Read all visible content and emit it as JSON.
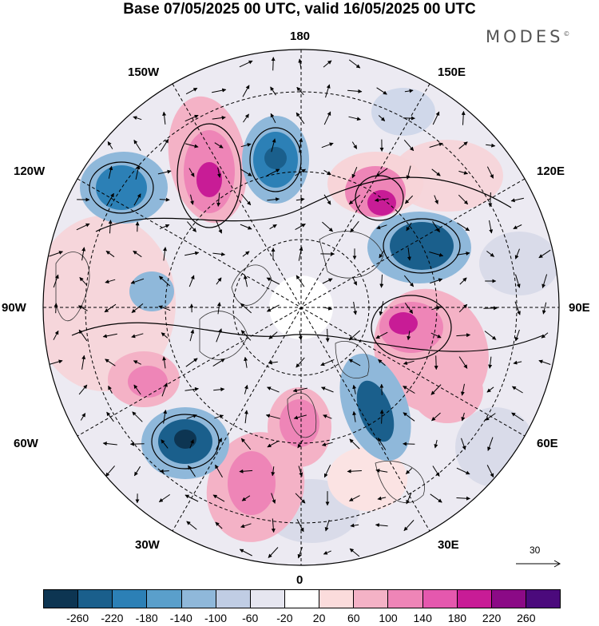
{
  "title": "Base 07/05/2025 00 UTC, valid 16/05/2025 00 UTC",
  "brand": "MODES",
  "brand_mark": "©",
  "longitude_labels": {
    "top": "180",
    "top_left": "150W",
    "top_right": "150E",
    "upper_left": "120W",
    "upper_right": "120E",
    "left": "90W",
    "right": "90E",
    "lower_left": "60W",
    "lower_right": "60E",
    "bottom_left": "30W",
    "bottom_right": "30E",
    "bottom": "0"
  },
  "reference_vector": "30",
  "colorbar": {
    "colors": [
      "#0d3552",
      "#1a5f8c",
      "#2c80b6",
      "#5a9fcb",
      "#8fb8da",
      "#c0cde4",
      "#e6e6f0",
      "#ffffff",
      "#fbdcdc",
      "#f4b2c6",
      "#ee85b7",
      "#e558ae",
      "#c81c96",
      "#8b0a86",
      "#4b0a7c"
    ],
    "ticks": [
      "-260",
      "-220",
      "-180",
      "-140",
      "-100",
      "-60",
      "-20",
      "20",
      "60",
      "100",
      "140",
      "180",
      "220",
      "260"
    ]
  }
}
